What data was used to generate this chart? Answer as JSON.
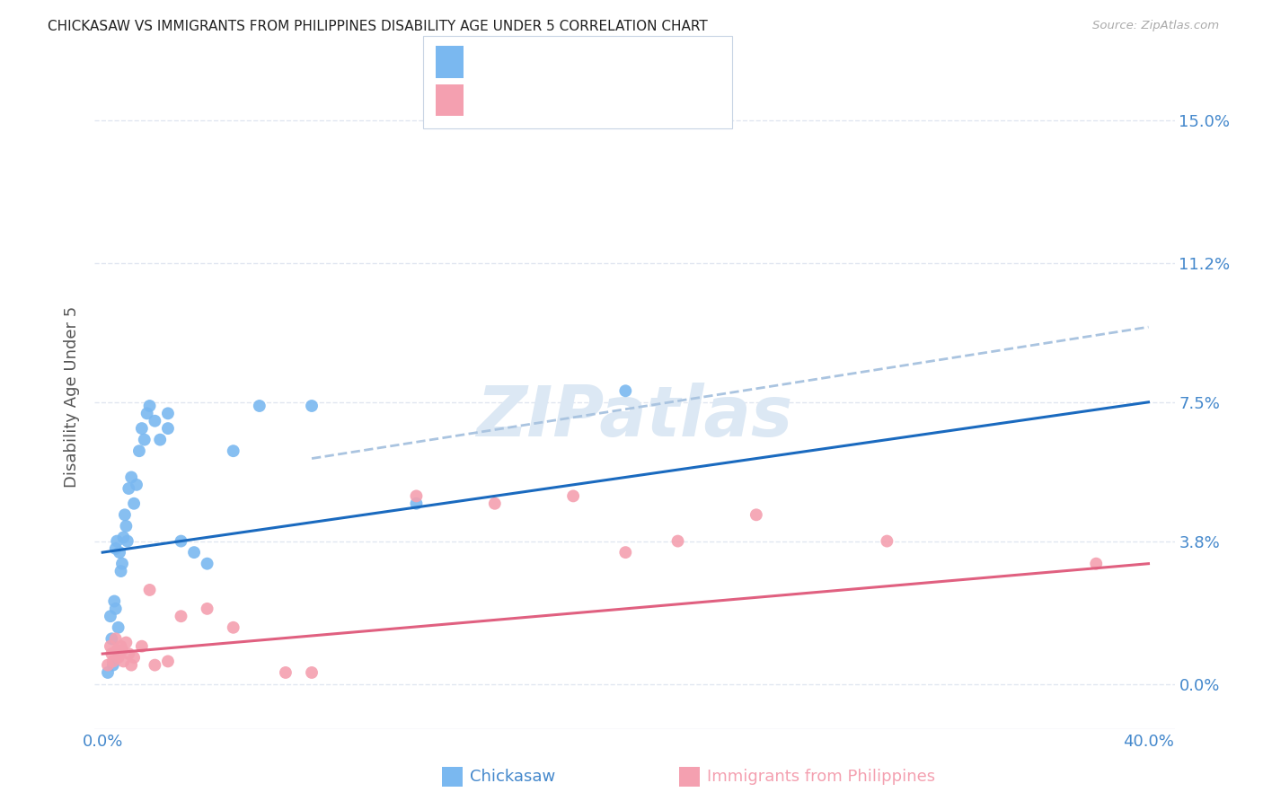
{
  "title": "CHICKASAW VS IMMIGRANTS FROM PHILIPPINES DISABILITY AGE UNDER 5 CORRELATION CHART",
  "source": "Source: ZipAtlas.com",
  "ylabel": "Disability Age Under 5",
  "ytick_values": [
    0.0,
    3.8,
    7.5,
    11.2,
    15.0
  ],
  "xlim": [
    -0.3,
    41.0
  ],
  "ylim": [
    -1.2,
    16.5
  ],
  "color_blue": "#7ab8f0",
  "color_pink": "#f4a0b0",
  "color_line_blue": "#1a6abf",
  "color_line_pink": "#e06080",
  "color_dash": "#aac4e0",
  "color_axis_labels": "#4488cc",
  "color_grid": "#dde4ef",
  "color_title": "#222222",
  "color_source": "#aaaaaa",
  "color_watermark": "#dce8f4",
  "chickasaw_x": [
    0.2,
    0.3,
    0.35,
    0.4,
    0.45,
    0.5,
    0.5,
    0.55,
    0.6,
    0.65,
    0.7,
    0.75,
    0.8,
    0.85,
    0.9,
    0.95,
    1.0,
    1.1,
    1.2,
    1.3,
    1.4,
    1.5,
    1.6,
    1.7,
    1.8,
    2.0,
    2.2,
    2.5,
    2.5,
    3.0,
    3.5,
    4.0,
    5.0,
    6.0,
    8.0,
    12.0,
    20.0
  ],
  "chickasaw_y": [
    0.3,
    1.8,
    1.2,
    0.5,
    2.2,
    2.0,
    3.6,
    3.8,
    1.5,
    3.5,
    3.0,
    3.2,
    3.9,
    4.5,
    4.2,
    3.8,
    5.2,
    5.5,
    4.8,
    5.3,
    6.2,
    6.8,
    6.5,
    7.2,
    7.4,
    7.0,
    6.5,
    7.2,
    6.8,
    3.8,
    3.5,
    3.2,
    6.2,
    7.4,
    7.4,
    4.8,
    7.8
  ],
  "philippines_x": [
    0.2,
    0.3,
    0.35,
    0.4,
    0.5,
    0.55,
    0.6,
    0.65,
    0.7,
    0.75,
    0.8,
    0.9,
    1.0,
    1.1,
    1.2,
    1.5,
    1.8,
    2.0,
    2.5,
    3.0,
    4.0,
    5.0,
    7.0,
    8.0,
    12.0,
    15.0,
    18.0,
    20.0,
    22.0,
    25.0,
    30.0,
    38.0
  ],
  "philippines_y": [
    0.5,
    1.0,
    0.8,
    0.6,
    1.2,
    0.9,
    0.7,
    0.8,
    1.0,
    0.9,
    0.6,
    1.1,
    0.8,
    0.5,
    0.7,
    1.0,
    2.5,
    0.5,
    0.6,
    1.8,
    2.0,
    1.5,
    0.3,
    0.3,
    5.0,
    4.8,
    5.0,
    3.5,
    3.8,
    4.5,
    3.8,
    3.2
  ],
  "chick_line_x": [
    0.0,
    40.0
  ],
  "chick_line_y": [
    3.5,
    7.5
  ],
  "phil_line_x": [
    0.0,
    40.0
  ],
  "phil_line_y": [
    0.8,
    3.2
  ],
  "dash_line_x": [
    8.0,
    40.0
  ],
  "dash_line_y": [
    6.0,
    9.5
  ]
}
